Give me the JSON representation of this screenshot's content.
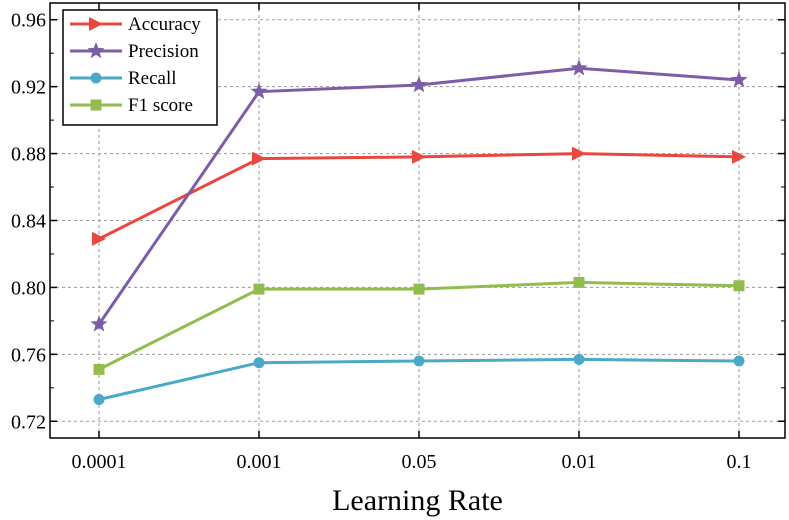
{
  "chart_data": {
    "type": "line",
    "title": "",
    "xlabel": "Learning Rate",
    "ylabel": "",
    "categories": [
      "0.0001",
      "0.001",
      "0.05",
      "0.01",
      "0.1"
    ],
    "ylim": [
      0.71,
      0.97
    ],
    "yticks": [
      "0.72",
      "0.76",
      "0.80",
      "0.84",
      "0.88",
      "0.92",
      "0.96"
    ],
    "grid": true,
    "legend_position": "top-left",
    "series": [
      {
        "name": "Accuracy",
        "color": "#e8483f",
        "marker": "triangle-right",
        "values": [
          0.829,
          0.877,
          0.878,
          0.88,
          0.878
        ]
      },
      {
        "name": "Precision",
        "color": "#7b5ea7",
        "marker": "star",
        "values": [
          0.778,
          0.917,
          0.921,
          0.931,
          0.924
        ]
      },
      {
        "name": "Recall",
        "color": "#4aa9c7",
        "marker": "circle",
        "values": [
          0.733,
          0.755,
          0.756,
          0.757,
          0.756
        ]
      },
      {
        "name": "F1 score",
        "color": "#93bc4f",
        "marker": "square",
        "values": [
          0.751,
          0.799,
          0.799,
          0.803,
          0.801
        ]
      }
    ]
  }
}
